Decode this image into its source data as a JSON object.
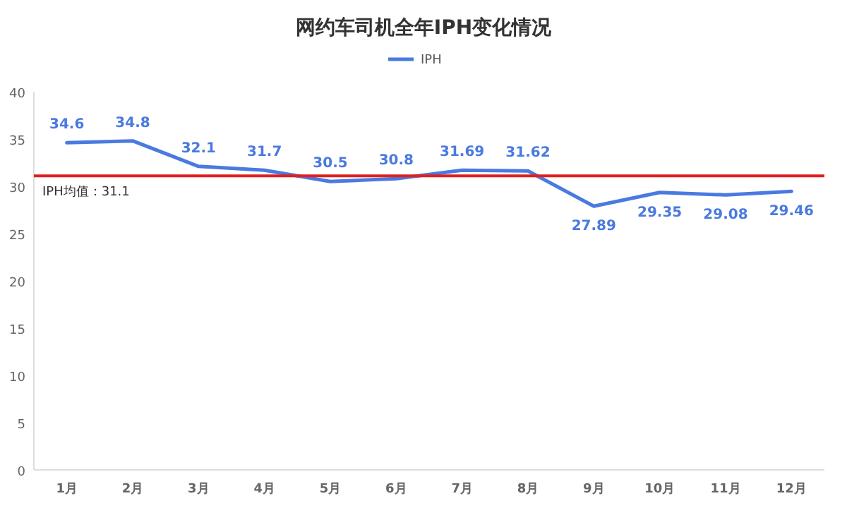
{
  "chart_data": {
    "type": "line",
    "title": "网约车司机全年IPH变化情况",
    "categories": [
      "1月",
      "2月",
      "3月",
      "4月",
      "5月",
      "6月",
      "7月",
      "8月",
      "9月",
      "10月",
      "11月",
      "12月"
    ],
    "series": [
      {
        "name": "IPH",
        "color": "#4a7ae0",
        "values": [
          34.6,
          34.8,
          32.1,
          31.7,
          30.5,
          30.8,
          31.69,
          31.62,
          27.89,
          29.35,
          29.08,
          29.46
        ]
      }
    ],
    "ylim": [
      0,
      40
    ],
    "yticks": [
      0,
      5,
      10,
      15,
      20,
      25,
      30,
      35,
      40
    ],
    "ref_lines": [
      {
        "axis": "y",
        "value": 31.1,
        "label": "IPH均值：31.1",
        "color": "#e02020"
      }
    ],
    "data_labels": true,
    "legend": "top",
    "grid": false,
    "marker": "none",
    "line_style": "solid"
  }
}
